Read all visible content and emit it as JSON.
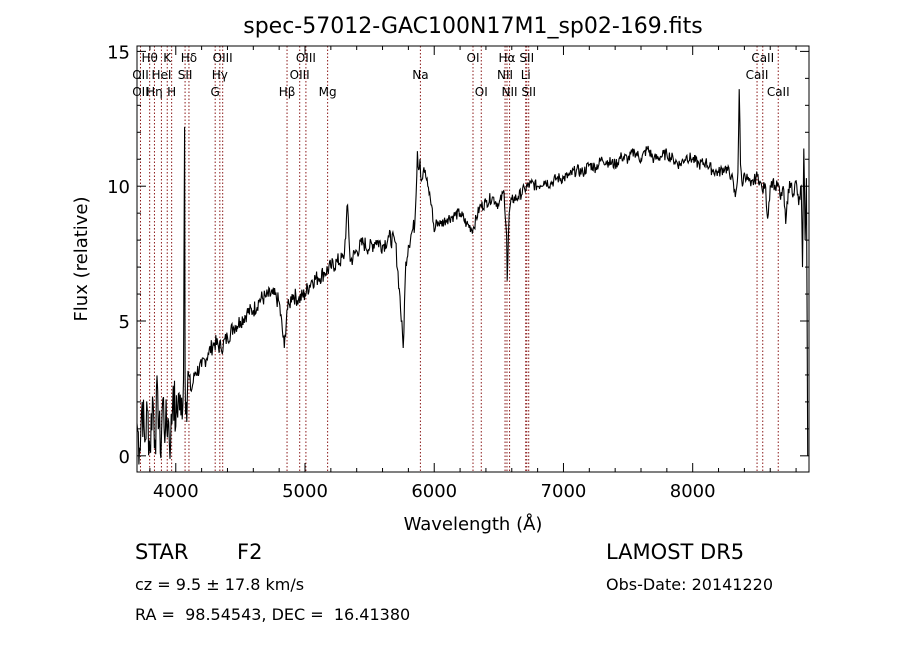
{
  "chart_data": {
    "type": "line",
    "title": "spec-57012-GAC100N17M1_sp02-169.fits",
    "xlabel": "Wavelength (Å)",
    "ylabel": "Flux (relative)",
    "xlim": [
      3700,
      8900
    ],
    "ylim": [
      -0.6,
      15.2
    ],
    "xticks": [
      4000,
      5000,
      6000,
      7000,
      8000
    ],
    "yticks": [
      0,
      5,
      10,
      15
    ],
    "grid": false,
    "legend": "none",
    "line_color": "#000000",
    "marker_color": "#8b1a1a",
    "series": [
      {
        "x": [
          3700,
          3720,
          3740,
          3760,
          3780,
          3800,
          3820,
          3840,
          3860,
          3880,
          3900,
          3920,
          3940,
          3960,
          3980,
          4000,
          4020,
          4040,
          4060,
          4068,
          4072,
          4080,
          4100,
          4120,
          4150,
          4200,
          4250,
          4300,
          4350,
          4400,
          4450,
          4500,
          4550,
          4600,
          4650,
          4700,
          4750,
          4800,
          4840,
          4860,
          4880,
          4900,
          4950,
          5000,
          5050,
          5100,
          5150,
          5200,
          5250,
          5300,
          5330,
          5350,
          5400,
          5450,
          5500,
          5550,
          5600,
          5650,
          5700,
          5730,
          5760,
          5780,
          5800,
          5820,
          5850,
          5870,
          5880,
          5890,
          5900,
          5920,
          5950,
          5980,
          6000,
          6020,
          6050,
          6100,
          6150,
          6200,
          6250,
          6300,
          6350,
          6400,
          6450,
          6500,
          6540,
          6560,
          6565,
          6580,
          6600,
          6650,
          6700,
          6750,
          6800,
          6850,
          6900,
          6950,
          7000,
          7050,
          7100,
          7150,
          7200,
          7250,
          7300,
          7350,
          7400,
          7450,
          7500,
          7550,
          7600,
          7650,
          7700,
          7750,
          7800,
          7850,
          7900,
          7950,
          8000,
          8050,
          8100,
          8150,
          8200,
          8250,
          8300,
          8330,
          8350,
          8360,
          8370,
          8380,
          8390,
          8400,
          8450,
          8500,
          8520,
          8540,
          8560,
          8580,
          8600,
          8620,
          8640,
          8660,
          8680,
          8700,
          8720,
          8740,
          8760,
          8780,
          8800,
          8820,
          8840,
          8850,
          8860,
          8870,
          8880,
          8890
        ],
        "y": [
          1.2,
          0.3,
          2.0,
          0.5,
          1.7,
          0.2,
          2.2,
          0.6,
          2.4,
          0.1,
          2.1,
          0.9,
          1.4,
          0.4,
          2.6,
          1.1,
          2.3,
          1.5,
          2.8,
          12.2,
          2.9,
          2.0,
          3.0,
          2.4,
          3.1,
          3.3,
          3.8,
          4.2,
          4.0,
          4.4,
          4.8,
          5.0,
          5.3,
          5.4,
          5.8,
          5.9,
          6.0,
          5.7,
          4.0,
          5.4,
          5.6,
          6.0,
          5.8,
          6.0,
          6.5,
          6.6,
          6.8,
          7.0,
          7.2,
          7.3,
          9.3,
          7.2,
          7.6,
          7.9,
          7.7,
          8.0,
          7.8,
          8.1,
          7.9,
          6.2,
          4.0,
          7.2,
          7.8,
          8.2,
          8.6,
          11.3,
          10.6,
          11.0,
          10.2,
          10.7,
          10.0,
          9.3,
          8.3,
          8.7,
          8.6,
          8.8,
          8.9,
          9.0,
          8.6,
          8.4,
          9.2,
          9.4,
          9.6,
          9.3,
          9.8,
          8.2,
          6.5,
          9.0,
          9.5,
          9.6,
          9.9,
          10.1,
          10.0,
          10.2,
          10.1,
          10.3,
          10.3,
          10.4,
          10.6,
          10.5,
          10.8,
          10.7,
          11.0,
          10.9,
          10.8,
          11.1,
          11.0,
          11.3,
          11.0,
          11.4,
          11.0,
          11.1,
          11.2,
          11.0,
          10.8,
          11.1,
          11.0,
          10.8,
          10.9,
          10.6,
          10.5,
          10.7,
          10.4,
          9.6,
          10.5,
          13.6,
          10.8,
          10.2,
          10.1,
          10.5,
          10.0,
          10.4,
          10.2,
          9.8,
          10.1,
          8.8,
          10.0,
          10.2,
          9.9,
          10.1,
          9.5,
          10.0,
          8.6,
          9.9,
          10.1,
          9.7,
          10.2,
          9.3,
          10.0,
          7.0,
          11.4,
          8.0,
          10.3,
          0.0
        ]
      }
    ],
    "annotations": [
      {
        "label": "Hθ",
        "x": 3798,
        "row": 0
      },
      {
        "label": "OII",
        "x": 3727,
        "row": 1
      },
      {
        "label": "OII",
        "x": 3727,
        "row": 2
      },
      {
        "label": "Hη",
        "x": 3835,
        "row": 2
      },
      {
        "label": "HeI",
        "x": 3889,
        "row": 1
      },
      {
        "label": "K",
        "x": 3934,
        "row": 0
      },
      {
        "label": "H",
        "x": 3968,
        "row": 2
      },
      {
        "label": "SII",
        "x": 4072,
        "row": 1
      },
      {
        "label": "Hδ",
        "x": 4102,
        "row": 0
      },
      {
        "label": "OIII",
        "x": 4363,
        "row": 0
      },
      {
        "label": "Hγ",
        "x": 4341,
        "row": 1
      },
      {
        "label": "G",
        "x": 4305,
        "row": 2
      },
      {
        "label": "Hβ",
        "x": 4861,
        "row": 2
      },
      {
        "label": "OIII",
        "x": 4959,
        "row": 1
      },
      {
        "label": "OIII",
        "x": 5007,
        "row": 0
      },
      {
        "label": "Mg",
        "x": 5175,
        "row": 2
      },
      {
        "label": "Na",
        "x": 5893,
        "row": 1
      },
      {
        "label": "OI",
        "x": 6300,
        "row": 0
      },
      {
        "label": "OI",
        "x": 6364,
        "row": 2
      },
      {
        "label": "Hα",
        "x": 6563,
        "row": 0
      },
      {
        "label": "NII",
        "x": 6548,
        "row": 1
      },
      {
        "label": "NII",
        "x": 6583,
        "row": 2
      },
      {
        "label": "SII",
        "x": 6716,
        "row": 0
      },
      {
        "label": "Li",
        "x": 6708,
        "row": 1
      },
      {
        "label": "SII",
        "x": 6731,
        "row": 2
      },
      {
        "label": "CaII",
        "x": 8542,
        "row": 0
      },
      {
        "label": "CaII",
        "x": 8498,
        "row": 1
      },
      {
        "label": "CaII",
        "x": 8662,
        "row": 2
      }
    ]
  },
  "info": {
    "object_class": "STAR",
    "subclass": "F2",
    "survey": "LAMOST DR5",
    "redshift_text": "cz = 9.5 ± 17.8 km/s",
    "obs_date": "Obs-Date: 20141220",
    "coords": "RA =  98.54543, DEC =  16.41380"
  }
}
